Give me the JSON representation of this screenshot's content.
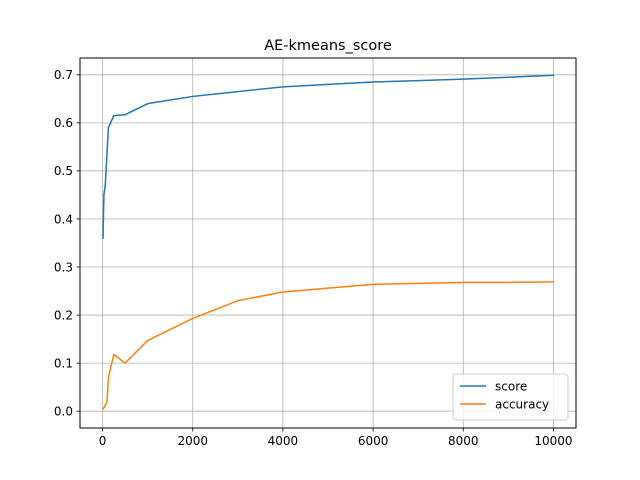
{
  "chart_data": {
    "type": "line",
    "title": "AE-kmeans_score",
    "xlabel": "",
    "ylabel": "",
    "xlim": [
      -500,
      10500
    ],
    "ylim": [
      -0.035,
      0.735
    ],
    "x_ticks": [
      0,
      2000,
      4000,
      6000,
      8000,
      10000
    ],
    "x_tick_labels": [
      "0",
      "2000",
      "4000",
      "6000",
      "8000",
      "10000"
    ],
    "y_ticks": [
      0.0,
      0.1,
      0.2,
      0.3,
      0.4,
      0.5,
      0.6,
      0.7
    ],
    "y_tick_labels": [
      "0.0",
      "0.1",
      "0.2",
      "0.3",
      "0.4",
      "0.5",
      "0.6",
      "0.7"
    ],
    "grid": true,
    "legend_position": "lower right",
    "series": [
      {
        "name": "score",
        "color": "#1f77b4",
        "x": [
          10,
          30,
          60,
          130,
          250,
          500,
          1000,
          2000,
          3000,
          4000,
          5000,
          6000,
          7000,
          8000,
          9000,
          10000
        ],
        "y": [
          0.36,
          0.45,
          0.47,
          0.59,
          0.615,
          0.617,
          0.64,
          0.655,
          0.665,
          0.675,
          0.68,
          0.685,
          0.688,
          0.691,
          0.695,
          0.699
        ]
      },
      {
        "name": "accuracy",
        "color": "#ff7f0e",
        "x": [
          10,
          50,
          100,
          130,
          250,
          500,
          1000,
          2000,
          3000,
          4000,
          5000,
          6000,
          7000,
          8000,
          9000,
          10000
        ],
        "y": [
          0.005,
          0.01,
          0.02,
          0.07,
          0.118,
          0.1,
          0.147,
          0.193,
          0.23,
          0.248,
          0.256,
          0.264,
          0.266,
          0.268,
          0.268,
          0.269
        ]
      }
    ]
  }
}
